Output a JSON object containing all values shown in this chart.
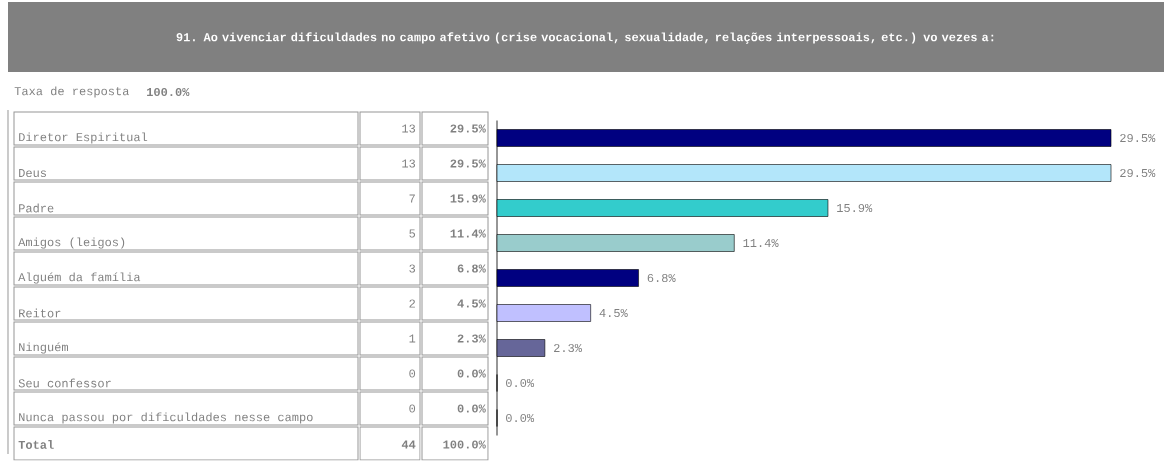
{
  "chart_data": {
    "type": "bar",
    "orientation": "horizontal",
    "title": "91. Ao vivenciar dificuldades no campo afetivo (crise vocacional, sexualidade, relações interpessoais, etc.) vo vezes a:",
    "subtitle": "Taxa de resposta",
    "categories": [
      "Diretor Espiritual",
      "Deus",
      "Padre",
      "Amigos (leigos)",
      "Alguém da família",
      "Reitor",
      "Ninguém",
      "Seu confessor",
      "Nunca passou por dificuldades nesse campo"
    ],
    "values": [
      29.5,
      29.5,
      15.9,
      11.4,
      6.8,
      4.5,
      2.3,
      0.0,
      0.0
    ],
    "value_labels": [
      "29.5%",
      "29.5%",
      "15.9%",
      "11.4%",
      "6.8%",
      "4.5%",
      "2.3%",
      "0.0%",
      "0.0%"
    ],
    "colors": [
      "#000080",
      "#b3e6fa",
      "#33cccc",
      "#99cccc",
      "#000080",
      "#c0c0ff",
      "#666699",
      "#006080",
      "#669900"
    ],
    "annotations": [
      "100.0%",
      "13",
      "13",
      "7",
      "5",
      "3",
      "2",
      "1",
      "0",
      "0",
      "Total",
      "44",
      "100.0%"
    ]
  }
}
